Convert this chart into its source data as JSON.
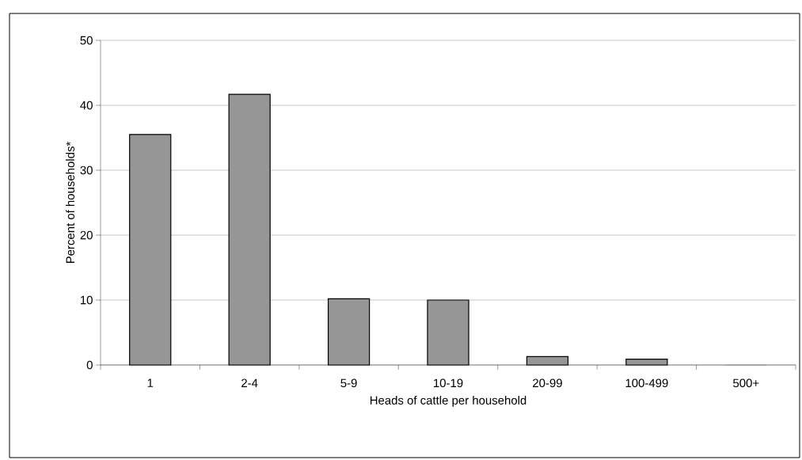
{
  "chart_data": {
    "type": "bar",
    "xlabel": "Heads of cattle per household",
    "ylabel": "Percent of households*",
    "categories": [
      "1",
      "2-4",
      "5-9",
      "10-19",
      "20-99",
      "100-499",
      "500+"
    ],
    "values": [
      35.5,
      41.7,
      10.2,
      10.0,
      1.3,
      0.9,
      0
    ],
    "color": "#969696",
    "ylim": [
      0,
      50
    ],
    "yticks": [
      0,
      10,
      20,
      30,
      40,
      50
    ],
    "grid": "y"
  }
}
